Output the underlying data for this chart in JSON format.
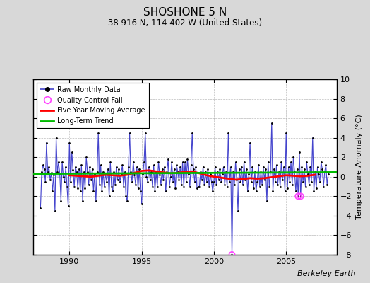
{
  "title": "SHOSHONE 5 N",
  "subtitle": "38.916 N, 114.402 W (United States)",
  "ylabel": "Temperature Anomaly (°C)",
  "credit": "Berkeley Earth",
  "ylim": [
    -8,
    10
  ],
  "yticks": [
    -8,
    -6,
    -4,
    -2,
    0,
    2,
    4,
    6,
    8,
    10
  ],
  "xlim": [
    1987.5,
    2008.5
  ],
  "xticks": [
    1990,
    1995,
    2000,
    2005
  ],
  "outer_bg": "#d8d8d8",
  "plot_bg": "#ffffff",
  "raw_color": "#4444cc",
  "raw_fill_color": "#8888ff",
  "raw_dot_color": "#000000",
  "ma_color": "#ff0000",
  "trend_color": "#00bb00",
  "qc_color": "#ff44ff",
  "trend_intercept": 0.3,
  "trend_slope": 0.008,
  "raw_monthly_data": [
    [
      1988.0,
      -3.2
    ],
    [
      1988.083,
      0.5
    ],
    [
      1988.167,
      1.2
    ],
    [
      1988.25,
      0.8
    ],
    [
      1988.333,
      -0.5
    ],
    [
      1988.417,
      3.5
    ],
    [
      1988.5,
      0.5
    ],
    [
      1988.583,
      1.0
    ],
    [
      1988.667,
      -0.3
    ],
    [
      1988.75,
      0.4
    ],
    [
      1988.833,
      -1.5
    ],
    [
      1988.917,
      0.2
    ],
    [
      1989.0,
      -3.5
    ],
    [
      1989.083,
      4.0
    ],
    [
      1989.167,
      0.5
    ],
    [
      1989.25,
      1.5
    ],
    [
      1989.333,
      0.3
    ],
    [
      1989.417,
      -2.5
    ],
    [
      1989.5,
      1.5
    ],
    [
      1989.583,
      0.0
    ],
    [
      1989.667,
      -0.5
    ],
    [
      1989.75,
      1.0
    ],
    [
      1989.833,
      -1.0
    ],
    [
      1989.917,
      -3.0
    ],
    [
      1990.0,
      3.5
    ],
    [
      1990.083,
      -0.5
    ],
    [
      1990.167,
      2.5
    ],
    [
      1990.25,
      0.7
    ],
    [
      1990.333,
      -1.0
    ],
    [
      1990.417,
      1.0
    ],
    [
      1990.5,
      0.5
    ],
    [
      1990.583,
      -1.2
    ],
    [
      1990.667,
      0.8
    ],
    [
      1990.75,
      -1.5
    ],
    [
      1990.833,
      1.2
    ],
    [
      1990.917,
      -2.5
    ],
    [
      1991.0,
      0.5
    ],
    [
      1991.083,
      -1.2
    ],
    [
      1991.167,
      2.0
    ],
    [
      1991.25,
      0.5
    ],
    [
      1991.333,
      -0.8
    ],
    [
      1991.417,
      1.0
    ],
    [
      1991.5,
      -0.3
    ],
    [
      1991.583,
      0.8
    ],
    [
      1991.667,
      -1.5
    ],
    [
      1991.75,
      0.3
    ],
    [
      1991.833,
      -2.5
    ],
    [
      1991.917,
      0.5
    ],
    [
      1992.0,
      4.5
    ],
    [
      1992.083,
      -0.8
    ],
    [
      1992.167,
      1.2
    ],
    [
      1992.25,
      -1.5
    ],
    [
      1992.333,
      0.5
    ],
    [
      1992.417,
      -1.0
    ],
    [
      1992.5,
      0.3
    ],
    [
      1992.583,
      -0.5
    ],
    [
      1992.667,
      0.8
    ],
    [
      1992.75,
      -2.0
    ],
    [
      1992.833,
      1.5
    ],
    [
      1992.917,
      -1.0
    ],
    [
      1993.0,
      -1.5
    ],
    [
      1993.083,
      0.5
    ],
    [
      1993.167,
      -0.8
    ],
    [
      1993.25,
      1.0
    ],
    [
      1993.333,
      -0.3
    ],
    [
      1993.417,
      0.8
    ],
    [
      1993.5,
      -0.5
    ],
    [
      1993.583,
      0.3
    ],
    [
      1993.667,
      1.2
    ],
    [
      1993.75,
      -1.0
    ],
    [
      1993.833,
      0.5
    ],
    [
      1993.917,
      -2.0
    ],
    [
      1994.0,
      -2.5
    ],
    [
      1994.083,
      1.0
    ],
    [
      1994.167,
      4.5
    ],
    [
      1994.25,
      0.5
    ],
    [
      1994.333,
      -0.5
    ],
    [
      1994.417,
      1.5
    ],
    [
      1994.5,
      0.2
    ],
    [
      1994.583,
      -0.8
    ],
    [
      1994.667,
      1.0
    ],
    [
      1994.75,
      -1.2
    ],
    [
      1994.833,
      0.8
    ],
    [
      1994.917,
      -1.5
    ],
    [
      1995.0,
      -2.8
    ],
    [
      1995.083,
      0.3
    ],
    [
      1995.167,
      1.5
    ],
    [
      1995.25,
      4.5
    ],
    [
      1995.333,
      0.0
    ],
    [
      1995.417,
      -0.5
    ],
    [
      1995.5,
      1.0
    ],
    [
      1995.583,
      -0.3
    ],
    [
      1995.667,
      0.5
    ],
    [
      1995.75,
      -1.0
    ],
    [
      1995.833,
      1.2
    ],
    [
      1995.917,
      -1.5
    ],
    [
      1996.0,
      0.5
    ],
    [
      1996.083,
      -1.0
    ],
    [
      1996.167,
      1.5
    ],
    [
      1996.25,
      0.2
    ],
    [
      1996.333,
      -0.8
    ],
    [
      1996.417,
      0.8
    ],
    [
      1996.5,
      -0.3
    ],
    [
      1996.583,
      1.0
    ],
    [
      1996.667,
      -1.5
    ],
    [
      1996.75,
      0.5
    ],
    [
      1996.833,
      1.8
    ],
    [
      1996.917,
      -1.0
    ],
    [
      1997.0,
      0.0
    ],
    [
      1997.083,
      1.5
    ],
    [
      1997.167,
      -0.5
    ],
    [
      1997.25,
      0.8
    ],
    [
      1997.333,
      -1.2
    ],
    [
      1997.417,
      1.2
    ],
    [
      1997.5,
      0.5
    ],
    [
      1997.583,
      -0.3
    ],
    [
      1997.667,
      1.0
    ],
    [
      1997.75,
      -0.8
    ],
    [
      1997.833,
      1.5
    ],
    [
      1997.917,
      -1.0
    ],
    [
      1998.0,
      1.5
    ],
    [
      1998.083,
      -0.5
    ],
    [
      1998.167,
      1.8
    ],
    [
      1998.25,
      0.3
    ],
    [
      1998.333,
      -1.0
    ],
    [
      1998.417,
      1.2
    ],
    [
      1998.5,
      4.5
    ],
    [
      1998.583,
      0.8
    ],
    [
      1998.667,
      -0.5
    ],
    [
      1998.75,
      1.0
    ],
    [
      1998.833,
      -1.2
    ],
    [
      1998.917,
      -1.0
    ],
    [
      1999.0,
      -1.0
    ],
    [
      1999.083,
      0.5
    ],
    [
      1999.167,
      -0.3
    ],
    [
      1999.25,
      1.0
    ],
    [
      1999.333,
      -0.8
    ],
    [
      1999.417,
      0.5
    ],
    [
      1999.5,
      -0.5
    ],
    [
      1999.583,
      0.8
    ],
    [
      1999.667,
      -1.0
    ],
    [
      1999.75,
      0.3
    ],
    [
      1999.833,
      -0.5
    ],
    [
      1999.917,
      -1.5
    ],
    [
      2000.0,
      -0.5
    ],
    [
      2000.083,
      1.0
    ],
    [
      2000.167,
      -0.8
    ],
    [
      2000.25,
      0.5
    ],
    [
      2000.333,
      -0.3
    ],
    [
      2000.417,
      0.8
    ],
    [
      2000.5,
      -0.5
    ],
    [
      2000.583,
      0.3
    ],
    [
      2000.667,
      1.0
    ],
    [
      2000.75,
      -0.8
    ],
    [
      2000.833,
      0.5
    ],
    [
      2000.917,
      -1.0
    ],
    [
      2001.0,
      4.5
    ],
    [
      2001.083,
      -0.5
    ],
    [
      2001.167,
      1.0
    ],
    [
      2001.25,
      -8.0
    ],
    [
      2001.333,
      0.5
    ],
    [
      2001.417,
      -0.8
    ],
    [
      2001.5,
      1.5
    ],
    [
      2001.583,
      -0.3
    ],
    [
      2001.667,
      -3.5
    ],
    [
      2001.75,
      0.8
    ],
    [
      2001.833,
      -0.5
    ],
    [
      2001.917,
      1.0
    ],
    [
      2002.0,
      -0.8
    ],
    [
      2002.083,
      1.5
    ],
    [
      2002.167,
      -0.3
    ],
    [
      2002.25,
      0.8
    ],
    [
      2002.333,
      -1.5
    ],
    [
      2002.417,
      0.3
    ],
    [
      2002.5,
      3.5
    ],
    [
      2002.583,
      -0.5
    ],
    [
      2002.667,
      1.0
    ],
    [
      2002.75,
      -1.2
    ],
    [
      2002.833,
      0.5
    ],
    [
      2002.917,
      -1.5
    ],
    [
      2003.0,
      -0.5
    ],
    [
      2003.083,
      1.2
    ],
    [
      2003.167,
      -1.0
    ],
    [
      2003.25,
      0.5
    ],
    [
      2003.333,
      -0.8
    ],
    [
      2003.417,
      1.0
    ],
    [
      2003.5,
      -0.3
    ],
    [
      2003.583,
      0.8
    ],
    [
      2003.667,
      -2.5
    ],
    [
      2003.75,
      1.5
    ],
    [
      2003.833,
      -1.0
    ],
    [
      2003.917,
      0.5
    ],
    [
      2004.0,
      5.5
    ],
    [
      2004.083,
      -1.5
    ],
    [
      2004.167,
      0.8
    ],
    [
      2004.25,
      -0.5
    ],
    [
      2004.333,
      1.2
    ],
    [
      2004.417,
      -0.8
    ],
    [
      2004.5,
      0.5
    ],
    [
      2004.583,
      -1.0
    ],
    [
      2004.667,
      1.5
    ],
    [
      2004.75,
      -0.3
    ],
    [
      2004.833,
      1.0
    ],
    [
      2004.917,
      -1.5
    ],
    [
      2005.0,
      4.5
    ],
    [
      2005.083,
      -1.2
    ],
    [
      2005.167,
      1.0
    ],
    [
      2005.25,
      -0.5
    ],
    [
      2005.333,
      1.5
    ],
    [
      2005.417,
      -0.8
    ],
    [
      2005.5,
      2.0
    ],
    [
      2005.583,
      0.5
    ],
    [
      2005.667,
      -1.5
    ],
    [
      2005.75,
      0.8
    ],
    [
      2005.833,
      -2.0
    ],
    [
      2005.917,
      2.5
    ],
    [
      2006.0,
      -2.0
    ],
    [
      2006.083,
      1.0
    ],
    [
      2006.167,
      -0.5
    ],
    [
      2006.25,
      0.8
    ],
    [
      2006.333,
      -1.0
    ],
    [
      2006.417,
      1.5
    ],
    [
      2006.5,
      0.3
    ],
    [
      2006.583,
      -0.8
    ],
    [
      2006.667,
      1.0
    ],
    [
      2006.75,
      -0.5
    ],
    [
      2006.833,
      4.0
    ],
    [
      2006.917,
      -1.5
    ],
    [
      2007.0,
      0.5
    ],
    [
      2007.083,
      -1.2
    ],
    [
      2007.167,
      1.0
    ],
    [
      2007.25,
      0.3
    ],
    [
      2007.333,
      -0.5
    ],
    [
      2007.417,
      1.5
    ],
    [
      2007.5,
      0.8
    ],
    [
      2007.583,
      -1.0
    ],
    [
      2007.667,
      0.5
    ],
    [
      2007.75,
      1.2
    ],
    [
      2007.833,
      -0.8
    ],
    [
      2007.917,
      0.3
    ]
  ],
  "qc_fail_points": [
    [
      2001.25,
      -8.0
    ],
    [
      2005.833,
      -2.0
    ],
    [
      2006.0,
      -2.0
    ]
  ],
  "moving_avg": [
    [
      1990.0,
      0.15
    ],
    [
      1990.5,
      0.1
    ],
    [
      1991.0,
      0.05
    ],
    [
      1991.5,
      0.0
    ],
    [
      1992.0,
      0.1
    ],
    [
      1992.5,
      0.2
    ],
    [
      1993.0,
      0.15
    ],
    [
      1993.5,
      0.1
    ],
    [
      1994.0,
      0.2
    ],
    [
      1994.5,
      0.4
    ],
    [
      1995.0,
      0.6
    ],
    [
      1995.5,
      0.65
    ],
    [
      1996.0,
      0.55
    ],
    [
      1996.5,
      0.45
    ],
    [
      1997.0,
      0.35
    ],
    [
      1997.5,
      0.4
    ],
    [
      1998.0,
      0.5
    ],
    [
      1998.5,
      0.55
    ],
    [
      1999.0,
      0.35
    ],
    [
      1999.5,
      0.15
    ],
    [
      2000.0,
      0.0
    ],
    [
      2000.5,
      -0.1
    ],
    [
      2001.0,
      -0.2
    ],
    [
      2001.5,
      -0.3
    ],
    [
      2002.0,
      -0.25
    ],
    [
      2002.5,
      -0.15
    ],
    [
      2003.0,
      -0.2
    ],
    [
      2003.5,
      -0.15
    ],
    [
      2004.0,
      -0.05
    ],
    [
      2004.5,
      0.05
    ],
    [
      2005.0,
      0.15
    ],
    [
      2005.5,
      0.1
    ],
    [
      2006.0,
      0.05
    ],
    [
      2006.5,
      0.1
    ],
    [
      2007.0,
      0.2
    ]
  ]
}
